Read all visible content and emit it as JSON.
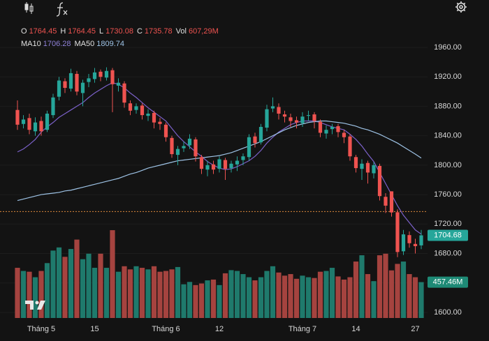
{
  "chart_data": {
    "type": "candlestick",
    "categories": [
      null,
      null,
      null,
      null,
      "Tháng 5",
      null,
      null,
      null,
      null,
      null,
      null,
      null,
      null,
      "15",
      null,
      null,
      null,
      null,
      null,
      null,
      null,
      null,
      null,
      null,
      null,
      "Tháng 6",
      null,
      null,
      null,
      null,
      null,
      null,
      null,
      null,
      "12",
      null,
      null,
      null,
      null,
      null,
      null,
      null,
      null,
      null,
      null,
      null,
      null,
      null,
      "Tháng 7",
      null,
      null,
      null,
      null,
      null,
      null,
      null,
      null,
      "14",
      null,
      null,
      null,
      null,
      null,
      null,
      null,
      null,
      null,
      "27",
      null
    ],
    "open": [
      1875,
      1856,
      1864,
      1846,
      1860,
      1848,
      1868,
      1893,
      1914,
      1904,
      1924,
      1898,
      1913,
      1917,
      1927,
      1919,
      1929,
      1908,
      1911,
      1884,
      1875,
      1881,
      1867,
      1871,
      1859,
      1855,
      1837,
      1814,
      1823,
      1827,
      1835,
      1811,
      1794,
      1801,
      1795,
      1807,
      1796,
      1801,
      1807,
      1811,
      1839,
      1831,
      1851,
      1877,
      1879,
      1869,
      1865,
      1861,
      1857,
      1867,
      1869,
      1859,
      1843,
      1849,
      1853,
      1844,
      1839,
      1811,
      1795,
      1803,
      1789,
      1799,
      1757,
      1764.45,
      1736,
      1683,
      1705,
      1693,
      1691
    ],
    "high": [
      1888,
      1868,
      1870,
      1865,
      1866,
      1874,
      1897,
      1920,
      1918,
      1931,
      1928,
      1916,
      1924,
      1932,
      1930,
      1933,
      1932,
      1918,
      1914,
      1888,
      1884,
      1884,
      1876,
      1874,
      1864,
      1858,
      1840,
      1826,
      1832,
      1842,
      1838,
      1814,
      1806,
      1806,
      1812,
      1810,
      1806,
      1812,
      1816,
      1842,
      1844,
      1856,
      1882,
      1892,
      1884,
      1874,
      1870,
      1866,
      1872,
      1874,
      1872,
      1862,
      1854,
      1856,
      1856,
      1848,
      1842,
      1814,
      1808,
      1806,
      1804,
      1802,
      1762,
      1764.45,
      1740,
      1712,
      1710,
      1700,
      1712
    ],
    "low": [
      1848,
      1850,
      1842,
      1840,
      1840,
      1845,
      1864,
      1888,
      1898,
      1900,
      1895,
      1880,
      1906,
      1912,
      1914,
      1915,
      1872,
      1900,
      1878,
      1868,
      1870,
      1862,
      1860,
      1850,
      1848,
      1832,
      1810,
      1800,
      1818,
      1822,
      1805,
      1788,
      1785,
      1788,
      1790,
      1780,
      1790,
      1792,
      1800,
      1806,
      1824,
      1828,
      1846,
      1872,
      1862,
      1858,
      1852,
      1850,
      1852,
      1860,
      1850,
      1838,
      1836,
      1842,
      1838,
      1830,
      1806,
      1790,
      1780,
      1775,
      1782,
      1752,
      1735,
      1730.08,
      1675,
      1678,
      1688,
      1680,
      1686
    ],
    "close": [
      1855,
      1862,
      1848,
      1858,
      1846,
      1870,
      1892,
      1915,
      1905,
      1925,
      1900,
      1912,
      1918,
      1926,
      1920,
      1928,
      1910,
      1912,
      1885,
      1874,
      1880,
      1868,
      1870,
      1858,
      1856,
      1838,
      1815,
      1822,
      1826,
      1836,
      1812,
      1795,
      1800,
      1794,
      1808,
      1795,
      1802,
      1806,
      1812,
      1838,
      1830,
      1852,
      1876,
      1880,
      1870,
      1866,
      1860,
      1858,
      1866,
      1868,
      1860,
      1844,
      1848,
      1852,
      1845,
      1838,
      1812,
      1796,
      1802,
      1790,
      1800,
      1758,
      1745,
      1735.78,
      1682,
      1706,
      1694,
      1690,
      1704.68
    ],
    "up_color": "#26a69a",
    "down_color": "#ef5350",
    "volume": {
      "name": "Vol",
      "values": [
        640,
        600,
        590,
        520,
        600,
        700,
        860,
        900,
        780,
        880,
        1000,
        750,
        820,
        640,
        820,
        640,
        1120,
        590,
        660,
        620,
        660,
        640,
        620,
        660,
        590,
        600,
        620,
        650,
        430,
        460,
        420,
        440,
        480,
        490,
        420,
        570,
        610,
        600,
        560,
        520,
        480,
        520,
        600,
        660,
        580,
        540,
        560,
        500,
        540,
        520,
        510,
        590,
        600,
        640,
        530,
        490,
        520,
        720,
        800,
        560,
        470,
        800,
        820,
        607.29,
        690,
        720,
        560,
        520,
        457.46
      ],
      "value_labels": [
        null,
        null,
        null,
        null,
        null,
        null,
        null,
        null,
        null,
        null,
        null,
        null,
        null,
        null,
        null,
        null,
        null,
        null,
        null,
        null,
        null,
        null,
        null,
        null,
        null,
        null,
        null,
        null,
        null,
        null,
        null,
        null,
        null,
        null,
        null,
        null,
        null,
        null,
        null,
        null,
        null,
        null,
        null,
        null,
        null,
        null,
        null,
        null,
        null,
        null,
        null,
        null,
        null,
        null,
        null,
        null,
        null,
        null,
        null,
        null,
        null,
        null,
        null,
        "607,29M",
        null,
        null,
        null,
        null,
        "457.46M"
      ],
      "up_color": "#1f7a6c",
      "down_color": "#a5433f",
      "lim": [
        0,
        3700
      ]
    },
    "ma": [
      {
        "name": "MA10",
        "color": "#7b61c9",
        "label_color": "#8f82d8",
        "values": [
          1818,
          1822,
          1828,
          1835,
          1845,
          1852,
          1858,
          1865,
          1870,
          1875,
          1880,
          1885,
          1892,
          1898,
          1903,
          1908,
          1912,
          1910,
          1905,
          1898,
          1892,
          1885,
          1878,
          1872,
          1866,
          1860,
          1850,
          1840,
          1832,
          1825,
          1818,
          1812,
          1805,
          1800,
          1796,
          1794,
          1795,
          1798,
          1802,
          1806,
          1812,
          1820,
          1830,
          1838,
          1845,
          1850,
          1855,
          1858,
          1860,
          1860,
          1860,
          1858,
          1855,
          1852,
          1850,
          1848,
          1842,
          1835,
          1826,
          1815,
          1805,
          1790,
          1775,
          1760,
          1745,
          1732,
          1722,
          1712,
          1706.28
        ]
      },
      {
        "name": "MA50",
        "color": "#9ec3e6",
        "label_color": "#9ec3e6",
        "values": [
          1752,
          1754,
          1756,
          1758,
          1760,
          1761,
          1762,
          1763,
          1765,
          1766,
          1768,
          1770,
          1772,
          1774,
          1776,
          1778,
          1780,
          1782,
          1785,
          1788,
          1790,
          1793,
          1796,
          1798,
          1800,
          1802,
          1804,
          1806,
          1807,
          1808,
          1809,
          1810,
          1811,
          1812,
          1813,
          1815,
          1817,
          1820,
          1823,
          1826,
          1829,
          1832,
          1836,
          1840,
          1844,
          1848,
          1851,
          1854,
          1856,
          1858,
          1859,
          1860,
          1860,
          1859,
          1858,
          1857,
          1855,
          1853,
          1850,
          1848,
          1845,
          1842,
          1838,
          1834,
          1830,
          1825,
          1820,
          1815,
          1809.74
        ]
      }
    ],
    "legend": {
      "o": "O",
      "h": "H",
      "l": "L",
      "c": "C",
      "index": 63
    },
    "reference_line": {
      "value": 1737,
      "color": "#e08a3c"
    },
    "ylim": [
      1592.4,
      1986.5
    ],
    "yticks": [
      {
        "value": 1600,
        "label": "1600.00"
      },
      {
        "value": 1640,
        "label": "1640.00"
      },
      {
        "value": 1680,
        "label": "1680.00"
      },
      {
        "value": 1720,
        "label": "1720.00"
      },
      {
        "value": 1760,
        "label": "1760.00"
      },
      {
        "value": 1800,
        "label": "1800.00"
      },
      {
        "value": 1840,
        "label": "1840.00"
      },
      {
        "value": 1880,
        "label": "1880.00"
      },
      {
        "value": 1920,
        "label": "1920.00"
      },
      {
        "value": 1960,
        "label": "1960.00"
      }
    ],
    "grid": true
  }
}
